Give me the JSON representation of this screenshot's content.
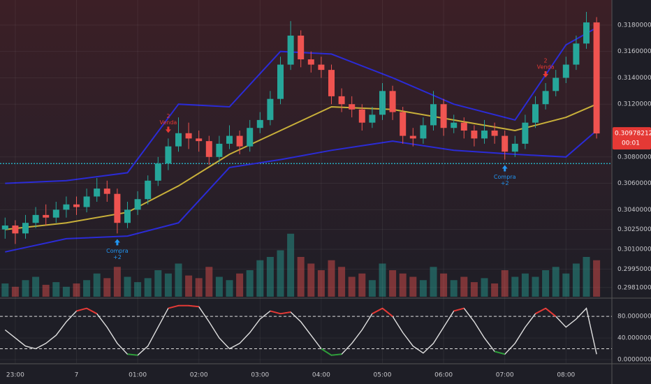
{
  "chart_data": [
    {
      "type": "candlestick",
      "xlim": [
        -0.5,
        59.5
      ],
      "ylim": [
        0.2974,
        0.3199
      ],
      "up_color": "#26a69a",
      "down_color": "#ef5350",
      "open": [
        0.3025,
        0.3028,
        0.3022,
        0.303,
        0.3036,
        0.3034,
        0.304,
        0.3044,
        0.3042,
        0.305,
        0.3056,
        0.3052,
        0.303,
        0.304,
        0.3048,
        0.3062,
        0.3075,
        0.3088,
        0.3098,
        0.3094,
        0.3092,
        0.308,
        0.309,
        0.3096,
        0.3088,
        0.3102,
        0.3108,
        0.3124,
        0.315,
        0.3172,
        0.3154,
        0.315,
        0.3146,
        0.3126,
        0.312,
        0.3116,
        0.3106,
        0.3112,
        0.313,
        0.3114,
        0.3096,
        0.3094,
        0.3104,
        0.312,
        0.3102,
        0.3106,
        0.31,
        0.3094,
        0.31,
        0.3096,
        0.3084,
        0.309,
        0.3106,
        0.312,
        0.313,
        0.314,
        0.315,
        0.3166,
        0.3182
      ],
      "high": [
        0.3034,
        0.3032,
        0.3036,
        0.3042,
        0.3044,
        0.3046,
        0.305,
        0.305,
        0.3056,
        0.3064,
        0.3062,
        0.3056,
        0.3046,
        0.3054,
        0.3066,
        0.308,
        0.3094,
        0.311,
        0.3106,
        0.31,
        0.3096,
        0.3096,
        0.3104,
        0.31,
        0.3108,
        0.3114,
        0.313,
        0.3156,
        0.3183,
        0.3176,
        0.316,
        0.3156,
        0.315,
        0.3132,
        0.3126,
        0.312,
        0.3118,
        0.3136,
        0.3134,
        0.3118,
        0.3102,
        0.311,
        0.313,
        0.3124,
        0.3112,
        0.311,
        0.3104,
        0.3108,
        0.3106,
        0.31,
        0.3096,
        0.3112,
        0.3126,
        0.3136,
        0.3146,
        0.3156,
        0.3172,
        0.319,
        0.3186
      ],
      "low": [
        0.3018,
        0.3014,
        0.3018,
        0.3026,
        0.3028,
        0.303,
        0.3034,
        0.3036,
        0.3038,
        0.3046,
        0.3046,
        0.3022,
        0.3026,
        0.3036,
        0.3044,
        0.3058,
        0.307,
        0.3084,
        0.3086,
        0.3084,
        0.3074,
        0.3076,
        0.3086,
        0.3082,
        0.3084,
        0.3098,
        0.3104,
        0.312,
        0.3146,
        0.3148,
        0.3144,
        0.314,
        0.312,
        0.3114,
        0.311,
        0.31,
        0.3102,
        0.3108,
        0.3108,
        0.309,
        0.3088,
        0.309,
        0.31,
        0.3096,
        0.3098,
        0.3094,
        0.3088,
        0.309,
        0.309,
        0.3078,
        0.308,
        0.3086,
        0.3102,
        0.3116,
        0.3126,
        0.3136,
        0.3146,
        0.3162,
        0.3094
      ],
      "close": [
        0.3028,
        0.3022,
        0.303,
        0.3036,
        0.3034,
        0.304,
        0.3044,
        0.3042,
        0.305,
        0.3056,
        0.3052,
        0.303,
        0.304,
        0.3048,
        0.3062,
        0.3075,
        0.3088,
        0.3098,
        0.3094,
        0.3092,
        0.308,
        0.309,
        0.3096,
        0.3088,
        0.3102,
        0.3108,
        0.3124,
        0.315,
        0.3172,
        0.3154,
        0.315,
        0.3146,
        0.3126,
        0.312,
        0.3116,
        0.3106,
        0.3112,
        0.313,
        0.3114,
        0.3096,
        0.3094,
        0.3104,
        0.312,
        0.3102,
        0.3106,
        0.31,
        0.3094,
        0.31,
        0.3096,
        0.3084,
        0.309,
        0.3106,
        0.312,
        0.313,
        0.314,
        0.315,
        0.3166,
        0.3182,
        0.30978212
      ],
      "series": [
        {
          "color": "#2b2bd6",
          "x": [
            0,
            6,
            12,
            17,
            22,
            27,
            32,
            38,
            44,
            50,
            55,
            58
          ],
          "values": [
            0.306,
            0.3062,
            0.3068,
            0.312,
            0.3118,
            0.316,
            0.3158,
            0.314,
            0.312,
            0.3108,
            0.3165,
            0.3178
          ]
        },
        {
          "color": "#2b2bd6",
          "x": [
            0,
            6,
            12,
            17,
            22,
            27,
            32,
            38,
            44,
            50,
            55,
            58
          ],
          "values": [
            0.3008,
            0.3018,
            0.302,
            0.303,
            0.3072,
            0.3078,
            0.3085,
            0.3092,
            0.3085,
            0.3082,
            0.308,
            0.31
          ]
        },
        {
          "color": "#c9b03a",
          "x": [
            0,
            6,
            12,
            17,
            22,
            27,
            32,
            38,
            44,
            50,
            55,
            58
          ],
          "values": [
            0.3025,
            0.303,
            0.3038,
            0.3058,
            0.3082,
            0.31,
            0.3118,
            0.3116,
            0.3108,
            0.31,
            0.311,
            0.312
          ]
        }
      ],
      "yticks": [
        {
          "value": 0.318,
          "label": "0.31800000"
        },
        {
          "value": 0.316,
          "label": "0.31600000"
        },
        {
          "value": 0.314,
          "label": "0.31400000"
        },
        {
          "value": 0.312,
          "label": "0.31200000"
        },
        {
          "value": 0.308,
          "label": "0.30800000"
        },
        {
          "value": 0.306,
          "label": "0.30600000"
        },
        {
          "value": 0.304,
          "label": "0.30400000"
        },
        {
          "value": 0.3025,
          "label": "0.30250000"
        },
        {
          "value": 0.301,
          "label": "0.30100000"
        },
        {
          "value": 0.2995,
          "label": "0.29950000"
        },
        {
          "value": 0.2981,
          "label": "0.29810000"
        }
      ],
      "hline": {
        "value": 0.3075,
        "color": "#26c6da"
      },
      "last": {
        "value": 0.30978212,
        "label": "0.30978212",
        "timer": "00:01",
        "color": "#e53935"
      },
      "annotations": [
        {
          "x": 11,
          "label": "Compra",
          "sub": "+2",
          "position": "below",
          "color": "#2196f3"
        },
        {
          "x": 16,
          "label": "Venda",
          "sub": "2",
          "position": "above",
          "color": "#e53935"
        },
        {
          "x": 49,
          "label": "Compra",
          "sub": "+2",
          "position": "below",
          "color": "#2196f3"
        },
        {
          "x": 53,
          "label": "Venda",
          "sub": "2",
          "position": "above",
          "color": "#e53935"
        }
      ]
    },
    {
      "type": "bar",
      "xlim": [
        -0.5,
        59.5
      ],
      "ylim": [
        0,
        100
      ],
      "values": [
        20,
        15,
        25,
        30,
        18,
        22,
        15,
        20,
        25,
        35,
        28,
        45,
        30,
        22,
        28,
        40,
        35,
        50,
        32,
        28,
        45,
        30,
        25,
        35,
        40,
        55,
        60,
        70,
        95,
        60,
        50,
        40,
        55,
        45,
        30,
        35,
        25,
        50,
        40,
        35,
        30,
        25,
        45,
        35,
        25,
        30,
        22,
        28,
        20,
        40,
        30,
        35,
        30,
        40,
        45,
        35,
        50,
        60,
        55
      ]
    },
    {
      "type": "line",
      "xlim": [
        -0.5,
        59.5
      ],
      "ylim": [
        -6.5,
        110
      ],
      "color": "#e0e0e0",
      "overbought_color": "#e53935",
      "oversold_color": "#2e9d3a",
      "bands": [
        80,
        20
      ],
      "values": [
        55,
        40,
        25,
        20,
        30,
        45,
        70,
        90,
        95,
        85,
        60,
        30,
        10,
        8,
        25,
        60,
        95,
        100,
        100,
        98,
        70,
        40,
        20,
        30,
        50,
        75,
        90,
        85,
        88,
        70,
        45,
        20,
        8,
        10,
        30,
        55,
        85,
        95,
        80,
        50,
        25,
        12,
        30,
        60,
        90,
        95,
        70,
        40,
        15,
        10,
        30,
        60,
        85,
        95,
        80,
        60,
        75,
        95,
        10
      ],
      "yticks": [
        {
          "value": 80,
          "label": "80.00000000"
        },
        {
          "value": 40,
          "label": "40.00000000"
        },
        {
          "value": 0,
          "label": "0.00000000"
        }
      ],
      "xticks": [
        {
          "value": 1,
          "label": "23:00"
        },
        7,
        {
          "value": 13,
          "label": "01:00"
        },
        {
          "value": 19,
          "label": "02:00"
        },
        {
          "value": 25,
          "label": "03:00"
        },
        {
          "value": 31,
          "label": "04:00"
        },
        {
          "value": 37,
          "label": "05:00"
        },
        {
          "value": 43,
          "label": "06:00"
        },
        {
          "value": 49,
          "label": "07:00"
        },
        {
          "value": 55,
          "label": "08:00"
        }
      ]
    }
  ]
}
